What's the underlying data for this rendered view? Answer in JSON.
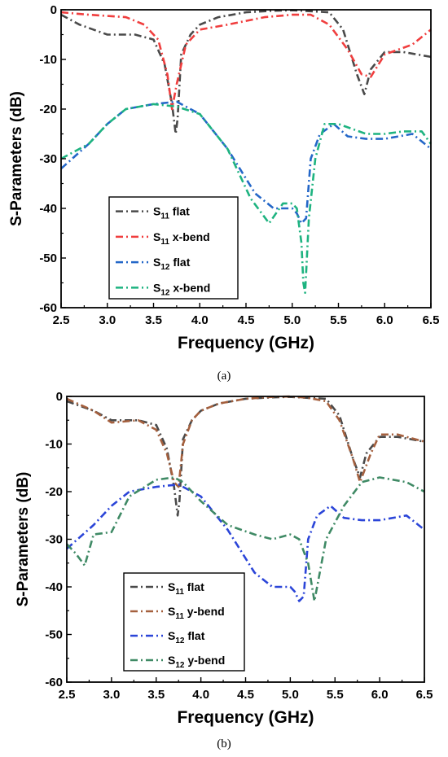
{
  "chart_data": [
    {
      "type": "line",
      "caption": "(a)",
      "xlabel": "Frequency (GHz)",
      "ylabel": "S-Parameters (dB)",
      "xlim": [
        2.5,
        6.5
      ],
      "ylim": [
        -60,
        0
      ],
      "xticks": [
        "2.5",
        "3.0",
        "3.5",
        "4.0",
        "4.5",
        "5.0",
        "5.5",
        "6.0",
        "6.5"
      ],
      "yticks": [
        "0",
        "-10",
        "-20",
        "-30",
        "-40",
        "-50",
        "-60"
      ],
      "legend_position": "bottom-left",
      "series": [
        {
          "sub": "11",
          "suffix": " flat",
          "color": "#4a4a4a",
          "x": [
            2.5,
            2.7,
            3.0,
            3.3,
            3.5,
            3.62,
            3.7,
            3.74,
            3.76,
            3.8,
            3.9,
            4.0,
            4.2,
            4.5,
            4.8,
            5.0,
            5.2,
            5.4,
            5.55,
            5.7,
            5.78,
            5.85,
            6.0,
            6.2,
            6.5
          ],
          "y": [
            -1,
            -3,
            -5,
            -5,
            -6,
            -11,
            -19,
            -25,
            -22,
            -9,
            -5,
            -3,
            -1.5,
            -0.5,
            -0.2,
            -0.1,
            -0.3,
            -0.5,
            -4,
            -13,
            -17,
            -12,
            -8.5,
            -8.5,
            -9.5
          ]
        },
        {
          "sub": "11",
          "suffix": " x-bend",
          "color": "#f03e3e",
          "x": [
            2.5,
            2.8,
            3.2,
            3.4,
            3.55,
            3.65,
            3.7,
            3.75,
            3.85,
            4.0,
            4.3,
            4.7,
            5.0,
            5.2,
            5.4,
            5.6,
            5.75,
            5.85,
            6.0,
            6.3,
            6.5
          ],
          "y": [
            -0.5,
            -1,
            -1.5,
            -3,
            -6,
            -13,
            -20,
            -15,
            -7,
            -4,
            -3,
            -1.5,
            -1,
            -1,
            -3,
            -8,
            -13,
            -13.5,
            -9,
            -7,
            -4
          ]
        },
        {
          "sub": "12",
          "suffix": " flat",
          "color": "#2467c8",
          "x": [
            2.5,
            2.8,
            3.0,
            3.2,
            3.5,
            3.75,
            4.0,
            4.3,
            4.6,
            4.8,
            5.0,
            5.05,
            5.1,
            5.15,
            5.2,
            5.3,
            5.45,
            5.6,
            5.8,
            6.0,
            6.3,
            6.5
          ],
          "y": [
            -32,
            -27,
            -23,
            -20,
            -19,
            -18.5,
            -21,
            -28,
            -37,
            -40,
            -40,
            -41,
            -43,
            -42,
            -30,
            -25,
            -23,
            -25.5,
            -26,
            -26,
            -25,
            -28
          ]
        },
        {
          "sub": "12",
          "suffix": " x-bend",
          "color": "#1eb380",
          "x": [
            2.5,
            2.8,
            3.0,
            3.2,
            3.5,
            3.75,
            4.0,
            4.3,
            4.55,
            4.75,
            4.9,
            5.0,
            5.05,
            5.1,
            5.12,
            5.14,
            5.18,
            5.25,
            5.35,
            5.5,
            5.8,
            6.0,
            6.2,
            6.4,
            6.5
          ],
          "y": [
            -30,
            -27,
            -23,
            -20,
            -19,
            -19.5,
            -21,
            -28,
            -38,
            -43,
            -39,
            -39,
            -40,
            -47,
            -55,
            -57,
            -42,
            -30,
            -23,
            -23,
            -25,
            -25,
            -24.5,
            -24.5,
            -27
          ]
        }
      ]
    },
    {
      "type": "line",
      "caption": "(b)",
      "xlabel": "Frequency (GHz)",
      "ylabel": "S-Parameters (dB)",
      "xlim": [
        2.5,
        6.5
      ],
      "ylim": [
        -60,
        0
      ],
      "xticks": [
        "2.5",
        "3.0",
        "3.5",
        "4.0",
        "4.5",
        "5.0",
        "5.5",
        "6.0",
        "6.5"
      ],
      "yticks": [
        "0",
        "-10",
        "-20",
        "-30",
        "-40",
        "-50",
        "-60"
      ],
      "legend_position": "bottom-left",
      "series": [
        {
          "sub": "11",
          "suffix": " flat",
          "color": "#4a4a4a",
          "x": [
            2.5,
            2.8,
            3.0,
            3.3,
            3.5,
            3.62,
            3.7,
            3.74,
            3.76,
            3.8,
            3.9,
            4.0,
            4.2,
            4.5,
            4.8,
            5.0,
            5.2,
            5.4,
            5.55,
            5.7,
            5.78,
            5.85,
            6.0,
            6.2,
            6.5
          ],
          "y": [
            -1,
            -3,
            -5,
            -5,
            -6,
            -11,
            -19,
            -25,
            -22,
            -9,
            -5,
            -3,
            -1.5,
            -0.5,
            -0.2,
            -0.1,
            -0.3,
            -0.5,
            -4,
            -13,
            -17,
            -12,
            -8.5,
            -8.5,
            -9.5
          ]
        },
        {
          "sub": "11",
          "suffix": " y-bend",
          "color": "#a5603e",
          "x": [
            2.5,
            2.8,
            3.0,
            3.3,
            3.5,
            3.62,
            3.7,
            3.75,
            3.8,
            3.9,
            4.0,
            4.2,
            4.5,
            4.8,
            5.0,
            5.2,
            5.4,
            5.55,
            5.7,
            5.78,
            5.9,
            6.0,
            6.2,
            6.5
          ],
          "y": [
            -0.5,
            -3,
            -5.5,
            -5,
            -7,
            -12,
            -18,
            -19,
            -10,
            -5,
            -3,
            -1.5,
            -0.5,
            -0.1,
            0,
            -0.3,
            -1,
            -5,
            -13,
            -18,
            -12,
            -8,
            -8,
            -9.5
          ]
        },
        {
          "sub": "12",
          "suffix": " flat",
          "color": "#2b45d8",
          "x": [
            2.5,
            2.8,
            3.0,
            3.2,
            3.5,
            3.75,
            4.0,
            4.3,
            4.6,
            4.8,
            5.0,
            5.05,
            5.1,
            5.15,
            5.2,
            5.3,
            5.45,
            5.6,
            5.8,
            6.0,
            6.3,
            6.5
          ],
          "y": [
            -32,
            -27,
            -23,
            -20,
            -19,
            -18.5,
            -21,
            -28,
            -37,
            -40,
            -40,
            -41,
            -43,
            -42,
            -30,
            -25,
            -23,
            -25.5,
            -26,
            -26,
            -25,
            -28
          ]
        },
        {
          "sub": "12",
          "suffix": " y-bend",
          "color": "#3f8a65",
          "x": [
            2.5,
            2.6,
            2.7,
            2.8,
            3.0,
            3.2,
            3.5,
            3.7,
            3.8,
            4.0,
            4.3,
            4.6,
            4.8,
            5.0,
            5.1,
            5.2,
            5.27,
            5.3,
            5.4,
            5.6,
            5.8,
            6.0,
            6.3,
            6.5
          ],
          "y": [
            -31,
            -33,
            -35.5,
            -29,
            -28.5,
            -21,
            -17.5,
            -17,
            -18,
            -22,
            -27,
            -29,
            -30,
            -29,
            -30,
            -35,
            -43,
            -40,
            -30,
            -23,
            -18,
            -17,
            -18,
            -20
          ]
        }
      ]
    }
  ]
}
